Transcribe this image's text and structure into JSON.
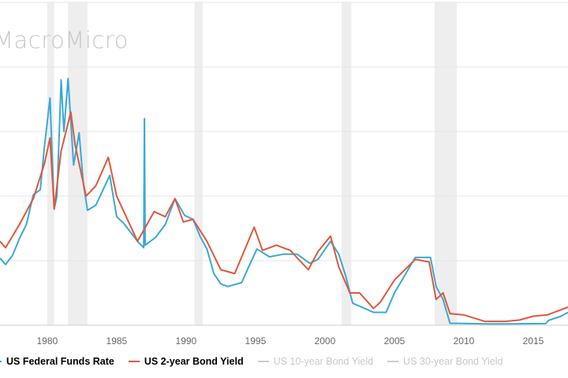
{
  "watermark": "MacroMicro",
  "colors": {
    "fed": "#3aa9d6",
    "two_year": "#e0573b",
    "inactive": "#cccccc",
    "recession": "#eeeeee",
    "grid": "#e6e6e6"
  },
  "legend": [
    {
      "label": "US Federal Funds Rate",
      "color": "#3aa9d6",
      "active": true
    },
    {
      "label": "US 2-year Bond Yield",
      "color": "#e0573b",
      "active": true
    },
    {
      "label": "US 10-year Bond Yield",
      "color": "#cccccc",
      "active": false
    },
    {
      "label": "US 30-year Bond Yield",
      "color": "#cccccc",
      "active": false
    }
  ],
  "chart_data": {
    "type": "line",
    "title": "",
    "xlabel": "",
    "ylabel": "",
    "xlim": [
      1976.6,
      2017.5
    ],
    "ylim": [
      0,
      25
    ],
    "y_gridlines": [
      0,
      5,
      10,
      15,
      20,
      25
    ],
    "x_ticks": [
      "1980",
      "1985",
      "1990",
      "1995",
      "2000",
      "2005",
      "2010",
      "2015"
    ],
    "grid": true,
    "legend_position": "bottom",
    "recessions": [
      [
        1980.0,
        1980.5
      ],
      [
        1981.5,
        1982.9
      ],
      [
        1990.6,
        1991.2
      ],
      [
        2001.2,
        2001.9
      ],
      [
        2007.9,
        2009.5
      ]
    ],
    "series": [
      {
        "name": "US Federal Funds Rate",
        "points": [
          [
            1976.6,
            5.2
          ],
          [
            1977,
            4.7
          ],
          [
            1977.5,
            5.4
          ],
          [
            1978,
            6.7
          ],
          [
            1978.5,
            7.8
          ],
          [
            1979,
            10.1
          ],
          [
            1979.5,
            10.5
          ],
          [
            1979.8,
            13.8
          ],
          [
            1980.2,
            17.6
          ],
          [
            1980.5,
            9.0
          ],
          [
            1980.7,
            10
          ],
          [
            1981.0,
            19
          ],
          [
            1981.2,
            15
          ],
          [
            1981.5,
            19.1
          ],
          [
            1981.9,
            12.4
          ],
          [
            1982.3,
            14.9
          ],
          [
            1982.6,
            11
          ],
          [
            1982.9,
            8.9
          ],
          [
            1983.5,
            9.3
          ],
          [
            1984.5,
            11.6
          ],
          [
            1985,
            8.4
          ],
          [
            1985.5,
            7.9
          ],
          [
            1986.5,
            6.5
          ],
          [
            1986.95,
            6.0
          ],
          [
            1987.0,
            16.0
          ],
          [
            1987.05,
            6.2
          ],
          [
            1987.8,
            6.8
          ],
          [
            1988.5,
            7.8
          ],
          [
            1989.2,
            9.8
          ],
          [
            1989.9,
            8.5
          ],
          [
            1990.5,
            8.2
          ],
          [
            1991,
            6.9
          ],
          [
            1991.5,
            5.9
          ],
          [
            1992,
            4.0
          ],
          [
            1992.5,
            3.2
          ],
          [
            1993,
            3.0
          ],
          [
            1994,
            3.3
          ],
          [
            1994.5,
            4.5
          ],
          [
            1995.1,
            5.9
          ],
          [
            1996,
            5.3
          ],
          [
            1997,
            5.5
          ],
          [
            1998,
            5.5
          ],
          [
            1998.9,
            4.8
          ],
          [
            1999.5,
            5.1
          ],
          [
            2000.4,
            6.5
          ],
          [
            2001,
            5.5
          ],
          [
            2001.5,
            3.8
          ],
          [
            2002,
            1.7
          ],
          [
            2003.5,
            1.0
          ],
          [
            2004.4,
            1.0
          ],
          [
            2005,
            2.5
          ],
          [
            2006.5,
            5.25
          ],
          [
            2007.6,
            5.25
          ],
          [
            2008,
            3.0
          ],
          [
            2008.5,
            2.0
          ],
          [
            2009,
            0.15
          ],
          [
            2012,
            0.1
          ],
          [
            2015.9,
            0.13
          ],
          [
            2016.1,
            0.38
          ],
          [
            2017,
            0.7
          ],
          [
            2017.5,
            1.0
          ]
        ]
      },
      {
        "name": "US 2-year Bond Yield",
        "points": [
          [
            1976.6,
            6.5
          ],
          [
            1977,
            6.0
          ],
          [
            1978,
            7.8
          ],
          [
            1979,
            9.8
          ],
          [
            1979.8,
            12.5
          ],
          [
            1980.2,
            14.5
          ],
          [
            1980.5,
            9
          ],
          [
            1981,
            13.5
          ],
          [
            1981.7,
            16.5
          ],
          [
            1982,
            14
          ],
          [
            1982.8,
            10
          ],
          [
            1983.5,
            10.8
          ],
          [
            1984.4,
            13.0
          ],
          [
            1985,
            10
          ],
          [
            1986.5,
            6.5
          ],
          [
            1987.7,
            8.8
          ],
          [
            1988.5,
            8.4
          ],
          [
            1989.2,
            9.8
          ],
          [
            1989.8,
            8.0
          ],
          [
            1990.5,
            8.2
          ],
          [
            1991.5,
            6.5
          ],
          [
            1992.5,
            4.3
          ],
          [
            1993.5,
            4.0
          ],
          [
            1994.9,
            7.6
          ],
          [
            1995.5,
            5.8
          ],
          [
            1996.5,
            6.2
          ],
          [
            1997.5,
            5.8
          ],
          [
            1998.8,
            4.3
          ],
          [
            1999.5,
            5.7
          ],
          [
            2000.4,
            6.9
          ],
          [
            2001,
            4.5
          ],
          [
            2001.8,
            2.5
          ],
          [
            2002.5,
            2.5
          ],
          [
            2003.5,
            1.3
          ],
          [
            2004,
            1.8
          ],
          [
            2005,
            3.5
          ],
          [
            2006.5,
            5.1
          ],
          [
            2007.5,
            4.9
          ],
          [
            2008,
            2.0
          ],
          [
            2008.5,
            2.5
          ],
          [
            2009,
            0.9
          ],
          [
            2010,
            0.8
          ],
          [
            2011.5,
            0.3
          ],
          [
            2013,
            0.3
          ],
          [
            2014,
            0.4
          ],
          [
            2015,
            0.7
          ],
          [
            2016,
            0.8
          ],
          [
            2017.5,
            1.4
          ]
        ]
      }
    ]
  }
}
